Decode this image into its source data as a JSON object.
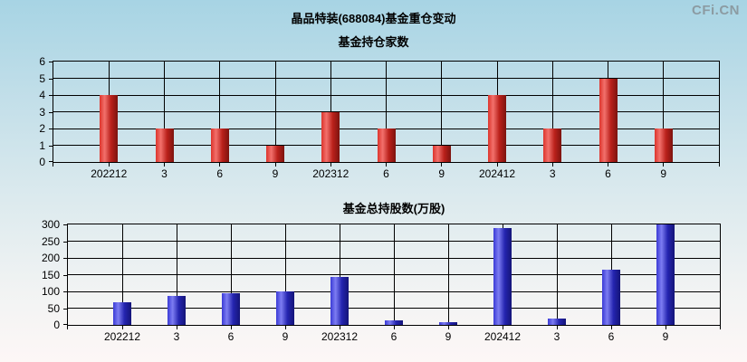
{
  "header": {
    "title": "晶品特装(688084)基金重仓变动",
    "watermark": "CFi.CN"
  },
  "colors": {
    "bg_top": "#a7d4e4",
    "bg_mid1": "#c3dfe9",
    "bg_mid2": "#dceaee",
    "bg_mid3": "#f1f3f3",
    "bg_bottom": "#fdf7f6",
    "grid": "#000000",
    "text": "#000000",
    "watermark": "#8c9ba2",
    "red_bar_stops": [
      "#dd342c",
      "#f2716c",
      "#bb211b",
      "#7c130f"
    ],
    "blue_bar_stops": [
      "#3a3ad6",
      "#7d7df2",
      "#2525b0",
      "#141478"
    ]
  },
  "chart_data": [
    {
      "type": "bar",
      "title": "基金持仓家数",
      "categories": [
        "202212",
        "3",
        "6",
        "9",
        "202312",
        "6",
        "9",
        "202412",
        "3",
        "6",
        "9"
      ],
      "values": [
        4,
        2,
        2,
        1,
        3,
        2,
        1,
        4,
        2,
        5,
        2
      ],
      "ylim": [
        0,
        6
      ],
      "yticks": [
        0,
        1,
        2,
        3,
        4,
        5,
        6
      ],
      "xlabel": "",
      "ylabel": "",
      "grid": true,
      "legend": "none",
      "bar_color": "red"
    },
    {
      "type": "bar",
      "title": "基金总持股数(万股)",
      "categories": [
        "202212",
        "3",
        "6",
        "9",
        "202312",
        "6",
        "9",
        "202412",
        "3",
        "6",
        "9"
      ],
      "values": [
        67,
        87,
        95,
        99,
        143,
        13,
        9,
        290,
        19,
        164,
        299
      ],
      "ylim": [
        0,
        300
      ],
      "yticks": [
        0,
        50,
        100,
        150,
        200,
        250,
        300
      ],
      "xlabel": "",
      "ylabel": "",
      "grid": true,
      "legend": "none",
      "bar_color": "blue"
    }
  ]
}
